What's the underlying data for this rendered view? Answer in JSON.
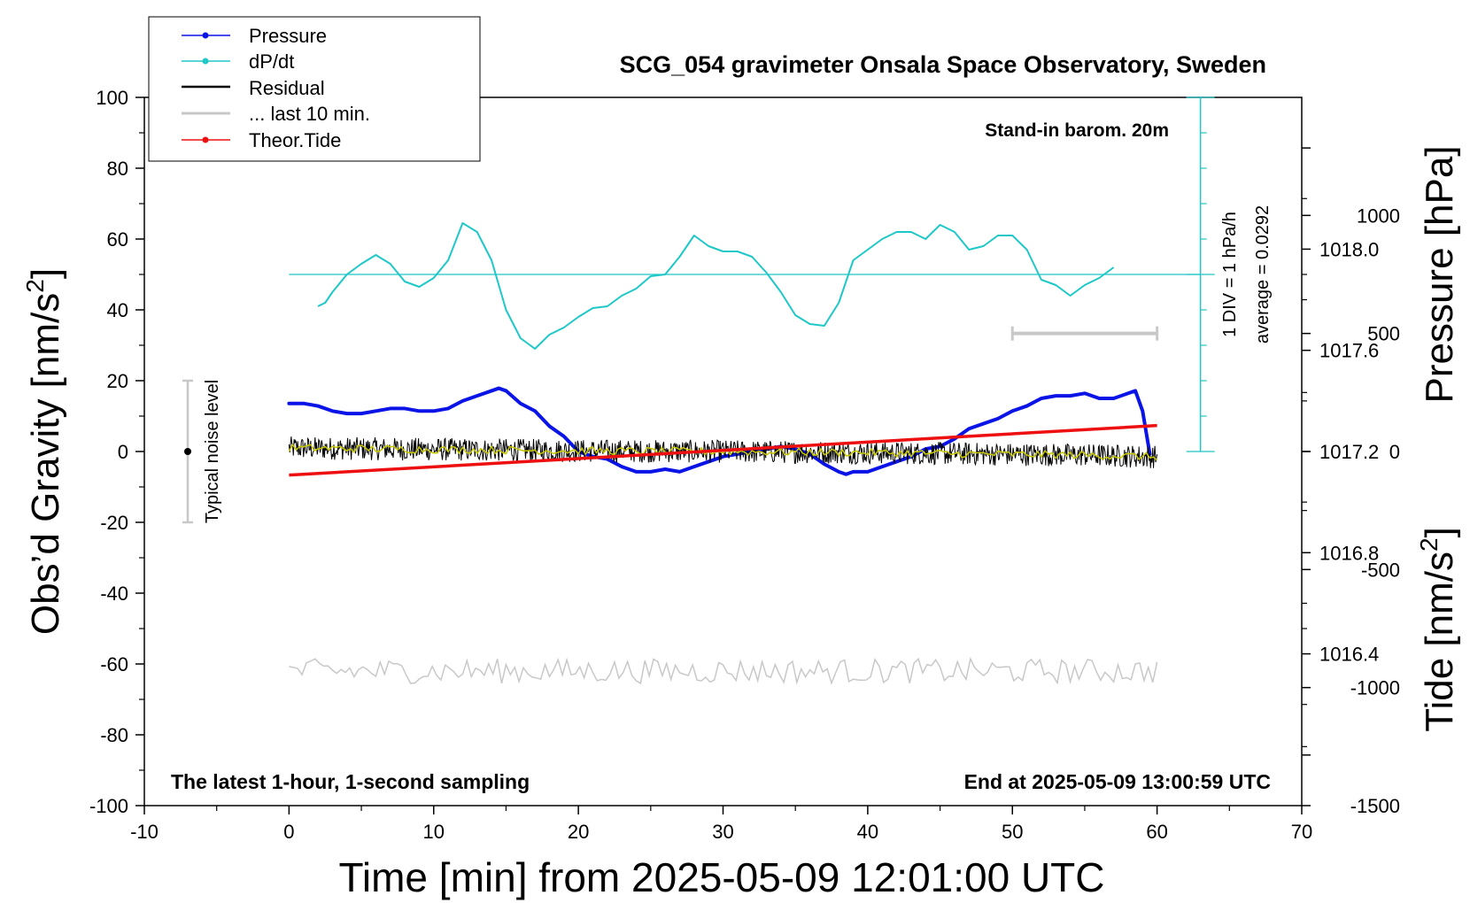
{
  "chart_data": {
    "type": "line",
    "title": "SCG_054 gravimeter Onsala Space Observatory, Sweden",
    "xlabel": "Time [min] from 2025-05-09 12:01:00 UTC",
    "ylabel_left_main": "Obs’d Gravity [nm/s",
    "ylabel_left_sup": "2",
    "ylabel_left_close": "]",
    "ylabel_right_pressure": "Pressure [hPa]",
    "ylabel_right_tide_main": "Tide [nm/s",
    "ylabel_right_tide_sup": "2",
    "ylabel_right_tide_close": "]",
    "xlim": [
      -10,
      70
    ],
    "ylim_left": [
      -100,
      100
    ],
    "ylim_pressure": [
      1015.8,
      1018.6
    ],
    "ylim_tide": [
      -1500,
      1500
    ],
    "x_ticks": [
      "-10",
      "0",
      "10",
      "20",
      "30",
      "40",
      "50",
      "60",
      "70"
    ],
    "y_ticks_left": [
      "-100",
      "-80",
      "-60",
      "-40",
      "-20",
      "0",
      "20",
      "40",
      "60",
      "80",
      "100"
    ],
    "y_ticks_pressure": [
      "1016.4",
      "1016.8",
      "1017.2",
      "1017.6",
      "1018.0"
    ],
    "y_ticks_tide": [
      "-1500",
      "-1000",
      "-500",
      "0",
      "500",
      "1000"
    ],
    "legend_placement": "top-left",
    "legend": [
      "Pressure",
      "dP/dt",
      "Residual",
      "... last 10 min.",
      "Theor.Tide"
    ],
    "annotations": {
      "barometer": "Stand-in barom. 20m",
      "dpdt_scale": "1 DIV = 1 hPa/h",
      "dpdt_average": "average = 0.0292",
      "noise": "Typical noise level",
      "sampling": "The latest 1-hour, 1-second sampling",
      "end_time": "End at 2025-05-09 13:00:59 UTC"
    },
    "colors": {
      "pressure": "#0a14e6",
      "dpdt": "#1fc8c8",
      "residual": "#000000",
      "last10": "#c8c8c8",
      "tide": "#ee1010",
      "smoothed_residual": "#c8c800",
      "lower_trace": "#c8c8c8"
    },
    "series": [
      {
        "name": "Pressure",
        "axis": "pressure",
        "x": [
          0,
          1,
          2,
          3,
          4,
          5,
          6,
          7,
          8,
          9,
          10,
          11,
          12,
          13,
          14,
          14.5,
          15,
          16,
          17,
          18,
          19,
          20,
          21,
          22,
          23,
          24,
          25,
          26,
          27,
          28,
          29,
          30,
          31,
          32,
          33,
          34,
          35,
          36,
          37,
          38,
          38.5,
          39,
          40,
          41,
          42,
          43,
          44,
          45,
          46,
          47,
          48,
          49,
          50,
          51,
          52,
          53,
          54,
          55,
          56,
          57,
          58,
          58.5,
          59,
          59.5
        ],
        "y": [
          1017.39,
          1017.39,
          1017.38,
          1017.36,
          1017.35,
          1017.35,
          1017.36,
          1017.37,
          1017.37,
          1017.36,
          1017.36,
          1017.37,
          1017.4,
          1017.42,
          1017.44,
          1017.45,
          1017.44,
          1017.39,
          1017.36,
          1017.3,
          1017.26,
          1017.2,
          1017.18,
          1017.17,
          1017.14,
          1017.12,
          1017.12,
          1017.13,
          1017.12,
          1017.14,
          1017.16,
          1017.18,
          1017.19,
          1017.2,
          1017.21,
          1017.22,
          1017.21,
          1017.19,
          1017.15,
          1017.12,
          1017.11,
          1017.12,
          1017.12,
          1017.14,
          1017.16,
          1017.18,
          1017.21,
          1017.22,
          1017.25,
          1017.29,
          1017.31,
          1017.33,
          1017.36,
          1017.38,
          1017.41,
          1017.42,
          1017.42,
          1017.43,
          1017.41,
          1017.41,
          1017.43,
          1017.44,
          1017.36,
          1017.19
        ]
      },
      {
        "name": "dP/dt",
        "axis": "left",
        "x": [
          2,
          2.5,
          3,
          4,
          5,
          6,
          7,
          8,
          9,
          10,
          11,
          12,
          13,
          14,
          15,
          16,
          17,
          18,
          19,
          20,
          21,
          22,
          23,
          24,
          25,
          26,
          27,
          28,
          29,
          30,
          31,
          32,
          33,
          34,
          35,
          36,
          37,
          38,
          39,
          40,
          41,
          42,
          43,
          44,
          45,
          46,
          47,
          48,
          49,
          50,
          51,
          52,
          53,
          54,
          55,
          56,
          57
        ],
        "y": [
          41,
          42,
          45,
          50,
          53,
          55.5,
          53,
          48,
          46.5,
          49,
          54,
          64.5,
          62,
          54,
          40,
          32,
          29,
          33,
          35,
          38,
          40.5,
          41,
          44,
          46,
          49.5,
          50,
          55,
          61,
          58,
          56.5,
          56.5,
          55,
          50.5,
          45,
          38.5,
          36,
          35.5,
          42,
          54,
          57,
          60,
          62,
          62,
          60,
          64,
          62,
          57,
          58,
          61,
          61,
          57,
          48.5,
          47,
          44,
          47,
          49,
          52
        ]
      },
      {
        "name": "Residual",
        "axis": "left",
        "x": [
          0,
          10,
          20,
          30,
          40,
          50,
          55,
          60
        ],
        "y": [
          1,
          0.6,
          0.2,
          0,
          -0.3,
          -0.8,
          -1,
          -1.5
        ]
      },
      {
        "name": "Theor.Tide",
        "axis": "tide",
        "x": [
          0,
          60
        ],
        "y": [
          -100,
          110
        ]
      }
    ],
    "noise_bar": {
      "x": -7,
      "ylim": [
        -20,
        20
      ]
    },
    "last_10_min_range": [
      50,
      60
    ]
  }
}
